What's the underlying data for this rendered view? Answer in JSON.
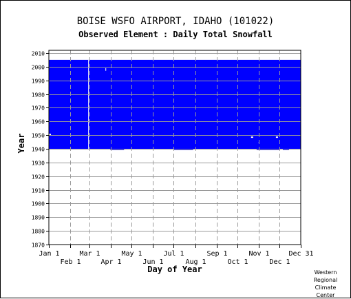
{
  "station": {
    "title": "BOISE WSFO AIRPORT, IDAHO   (101022)",
    "subtitle": "Observed Element : Daily Total Snowfall"
  },
  "credit": [
    "Western",
    "Regional",
    "Climate",
    "Center"
  ],
  "colors": {
    "data_fill": "#0000ff",
    "gridline": "#999999",
    "axis": "#000000",
    "background": "#ffffff"
  },
  "chart_data": {
    "type": "heatmap",
    "title": "BOISE WSFO AIRPORT, IDAHO   (101022)",
    "subtitle": "Observed Element : Daily Total Snowfall",
    "xlabel": "Day of Year",
    "ylabel": "Year",
    "xlim": [
      1,
      366
    ],
    "ylim": [
      1870,
      2012
    ],
    "x_ticks_row1": [
      {
        "label": "Jan 1",
        "day": 1
      },
      {
        "label": "Mar 1",
        "day": 60
      },
      {
        "label": "May 1",
        "day": 121
      },
      {
        "label": "Jul 1",
        "day": 182
      },
      {
        "label": "Sep 1",
        "day": 244
      },
      {
        "label": "Nov 1",
        "day": 305
      },
      {
        "label": "Dec 31",
        "day": 366
      }
    ],
    "x_ticks_row2": [
      {
        "label": "Feb 1",
        "day": 32
      },
      {
        "label": "Apr 1",
        "day": 91
      },
      {
        "label": "Jun 1",
        "day": 152
      },
      {
        "label": "Aug 1",
        "day": 213
      },
      {
        "label": "Oct 1",
        "day": 274
      },
      {
        "label": "Dec 1",
        "day": 335
      }
    ],
    "y_ticks": [
      2010,
      2000,
      1990,
      1980,
      1970,
      1960,
      1950,
      1940,
      1930,
      1920,
      1910,
      1900,
      1890,
      1880,
      1870
    ],
    "grid": true,
    "legend": "none",
    "data_regions": [
      {
        "name": "observed",
        "x": [
          1,
          366
        ],
        "y": [
          1940,
          2005
        ]
      },
      {
        "name": "observed",
        "x": [
          90,
          110
        ],
        "y": [
          1939,
          1940
        ]
      },
      {
        "name": "observed",
        "x": [
          118,
          300
        ],
        "y": [
          1940,
          1941
        ]
      },
      {
        "name": "observed",
        "x": [
          182,
          210
        ],
        "y": [
          1939,
          1940
        ]
      },
      {
        "name": "observed",
        "x": [
          302,
          336
        ],
        "y": [
          1939,
          1940
        ]
      },
      {
        "name": "observed",
        "x": [
          340,
          349
        ],
        "y": [
          1939,
          1940
        ]
      }
    ],
    "gaps": [
      {
        "x": [
          58,
          59
        ],
        "y": [
          1940,
          2005
        ]
      },
      {
        "x": [
          83,
          84
        ],
        "y": [
          1997,
          1999
        ]
      },
      {
        "x": [
          1,
          4
        ],
        "y": [
          1950,
          1951
        ]
      },
      {
        "x": [
          294,
          297
        ],
        "y": [
          1948,
          1949
        ]
      },
      {
        "x": [
          330,
          333
        ],
        "y": [
          1948,
          1949
        ]
      },
      {
        "x": [
          305,
          306
        ],
        "y": [
          1944,
          1945
        ]
      }
    ]
  }
}
